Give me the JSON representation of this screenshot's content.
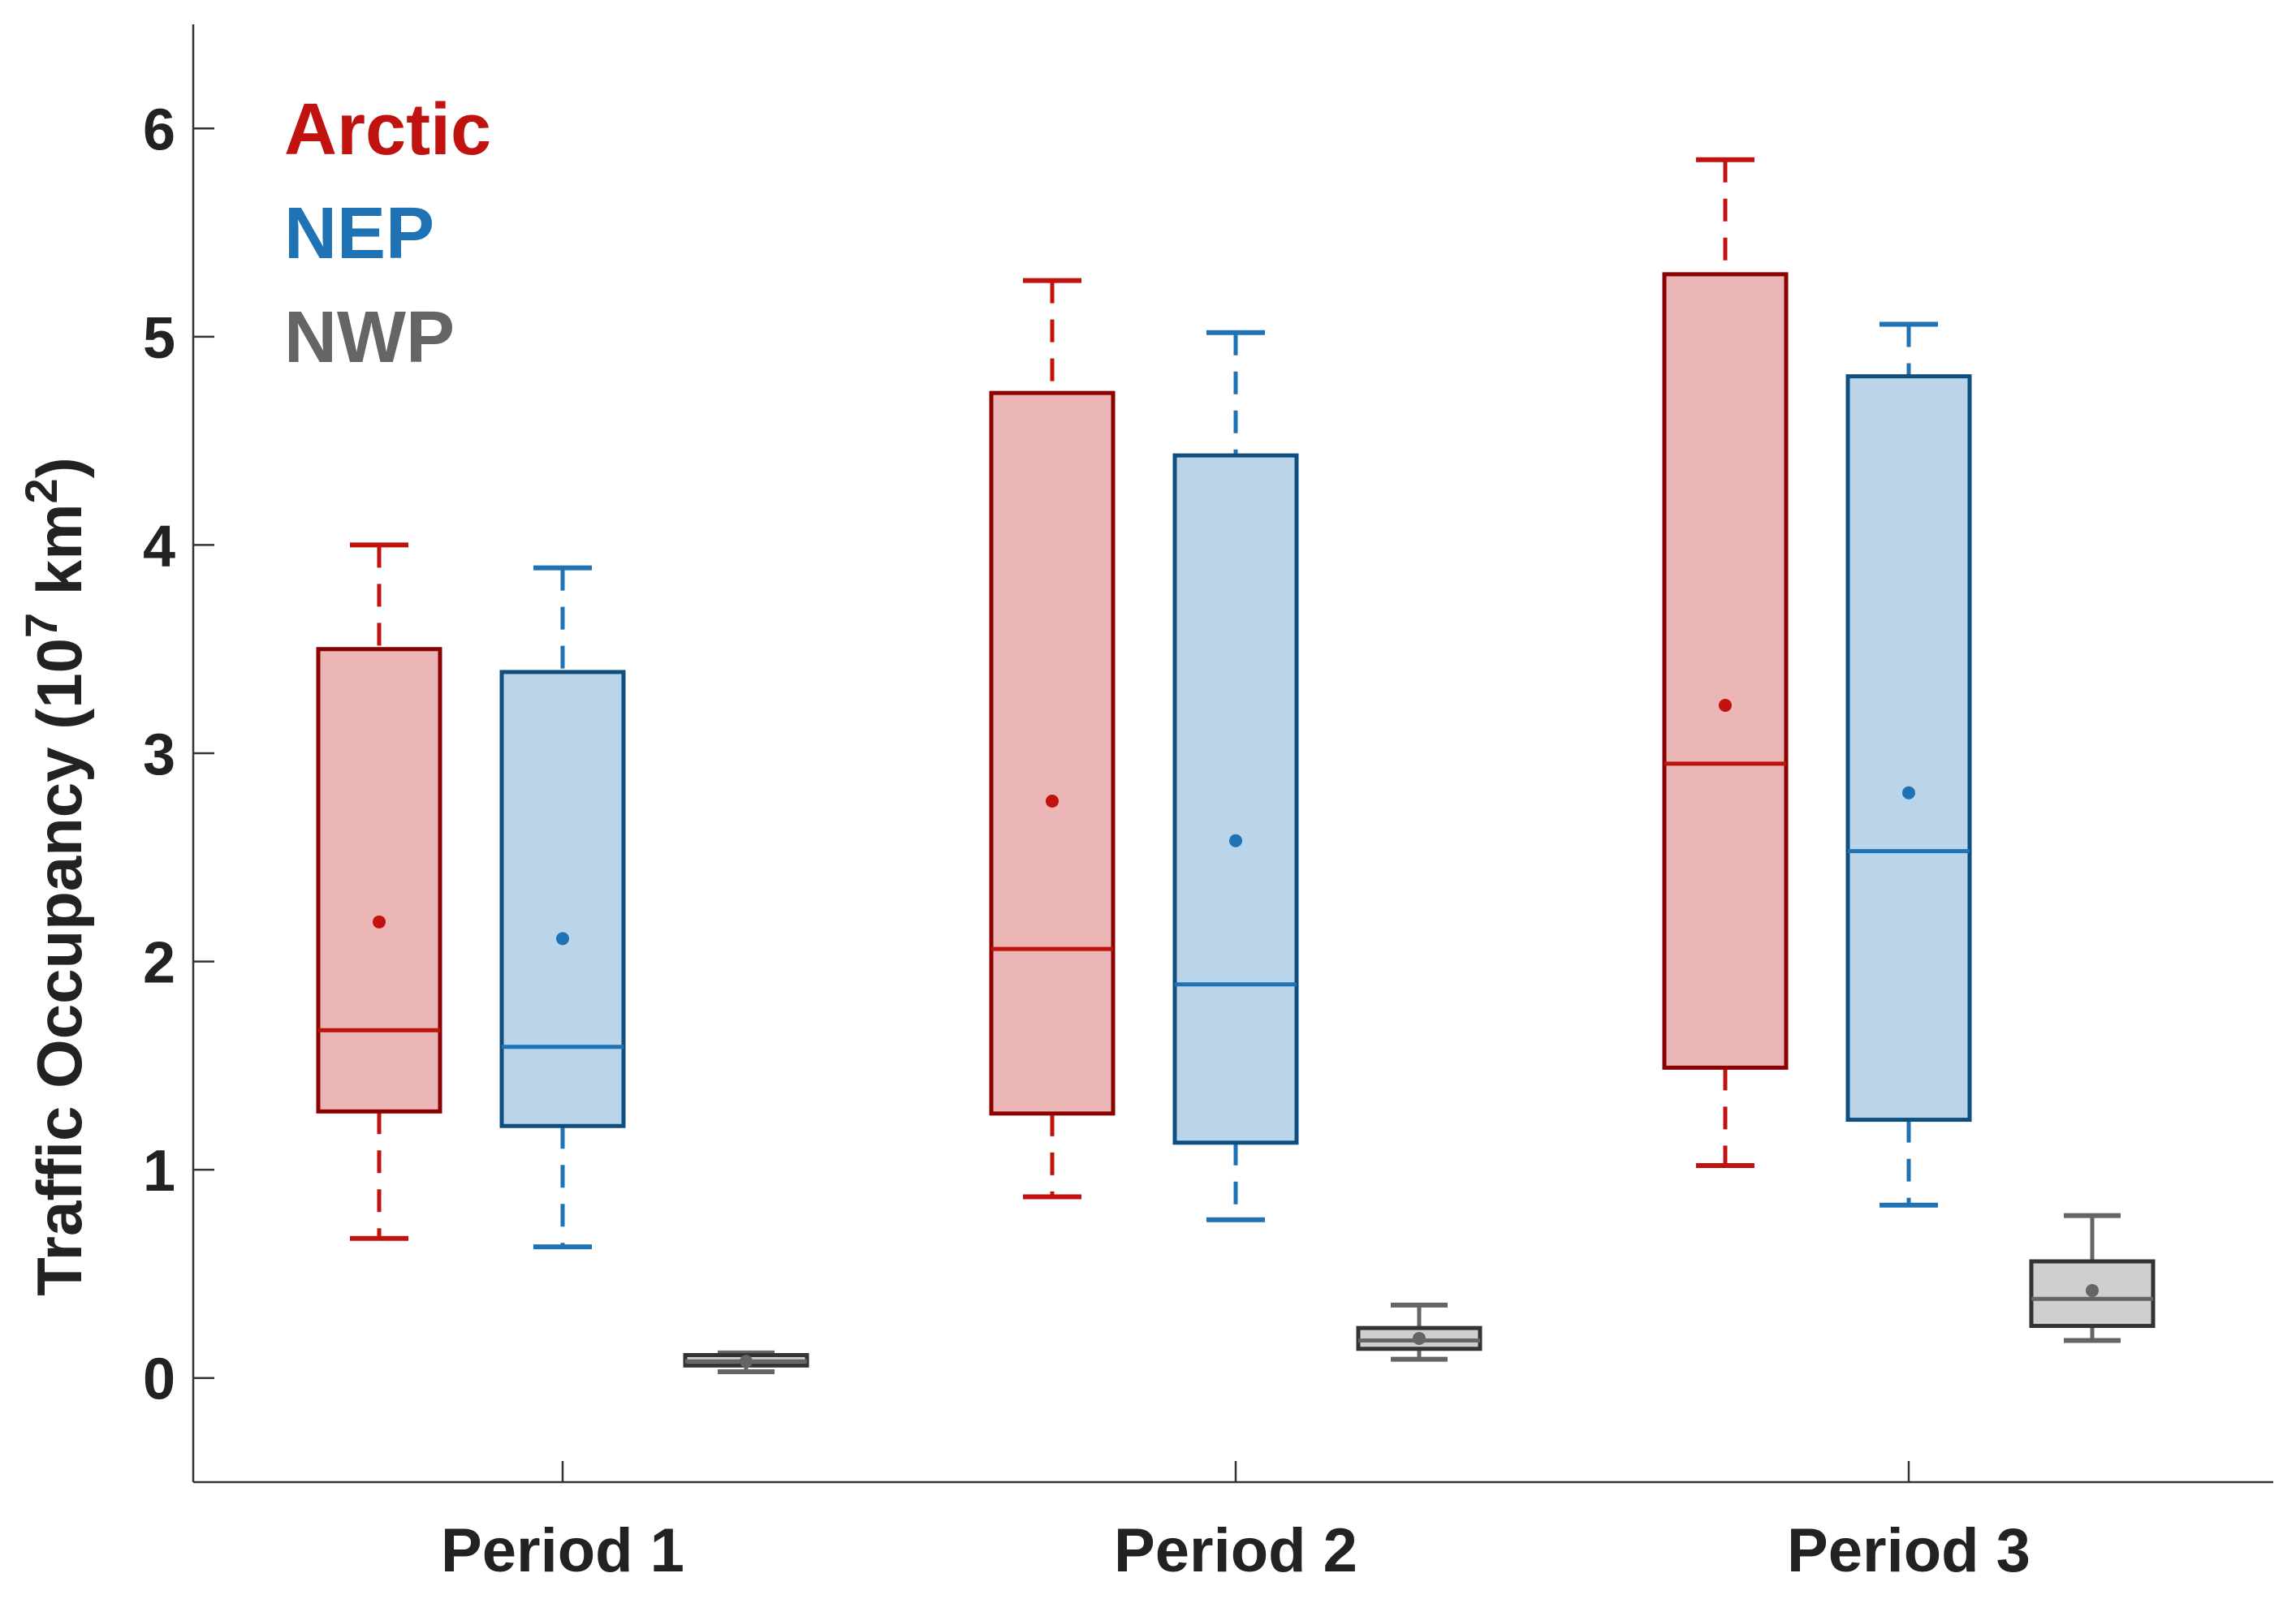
{
  "chart_data": {
    "type": "boxplot",
    "title": "",
    "ylabel": {
      "main": "Traffic Occupancy (10",
      "exp1": "7",
      "mid": " km",
      "exp2": "2",
      "end": ")"
    },
    "ylim": [
      -0.5,
      6.5
    ],
    "yticks": [
      0,
      1,
      2,
      3,
      4,
      5,
      6
    ],
    "categories": [
      "Period 1",
      "Period 2",
      "Period 3"
    ],
    "legend": {
      "position": "top-left"
    },
    "series": [
      {
        "name": "Arctic",
        "color": "#c0120f",
        "edge": "#8b0000",
        "fill": "#ebb6b5",
        "boxes": [
          {
            "min": 0.67,
            "q1": 1.28,
            "median": 1.67,
            "q3": 3.5,
            "max": 4.0,
            "mean": 2.19
          },
          {
            "min": 0.87,
            "q1": 1.27,
            "median": 2.06,
            "q3": 4.73,
            "max": 5.27,
            "mean": 2.77
          },
          {
            "min": 1.02,
            "q1": 1.49,
            "median": 2.95,
            "q3": 5.3,
            "max": 5.85,
            "mean": 3.23
          }
        ]
      },
      {
        "name": "NEP",
        "color": "#1f72b3",
        "edge": "#0f4f80",
        "fill": "#bad5e9",
        "boxes": [
          {
            "min": 0.63,
            "q1": 1.21,
            "median": 1.59,
            "q3": 3.39,
            "max": 3.89,
            "mean": 2.11
          },
          {
            "min": 0.76,
            "q1": 1.13,
            "median": 1.89,
            "q3": 4.43,
            "max": 5.02,
            "mean": 2.58
          },
          {
            "min": 0.83,
            "q1": 1.24,
            "median": 2.53,
            "q3": 4.81,
            "max": 5.06,
            "mean": 2.81
          }
        ]
      },
      {
        "name": "NWP",
        "color": "#656565",
        "edge": "#333333",
        "fill": "#cfcfcf",
        "boxes": [
          {
            "min": 0.03,
            "q1": 0.06,
            "median": 0.08,
            "q3": 0.11,
            "max": 0.12,
            "mean": 0.08
          },
          {
            "min": 0.09,
            "q1": 0.14,
            "median": 0.18,
            "q3": 0.24,
            "max": 0.35,
            "mean": 0.19
          },
          {
            "min": 0.18,
            "q1": 0.25,
            "median": 0.38,
            "q3": 0.56,
            "max": 0.78,
            "mean": 0.42
          }
        ]
      }
    ]
  }
}
